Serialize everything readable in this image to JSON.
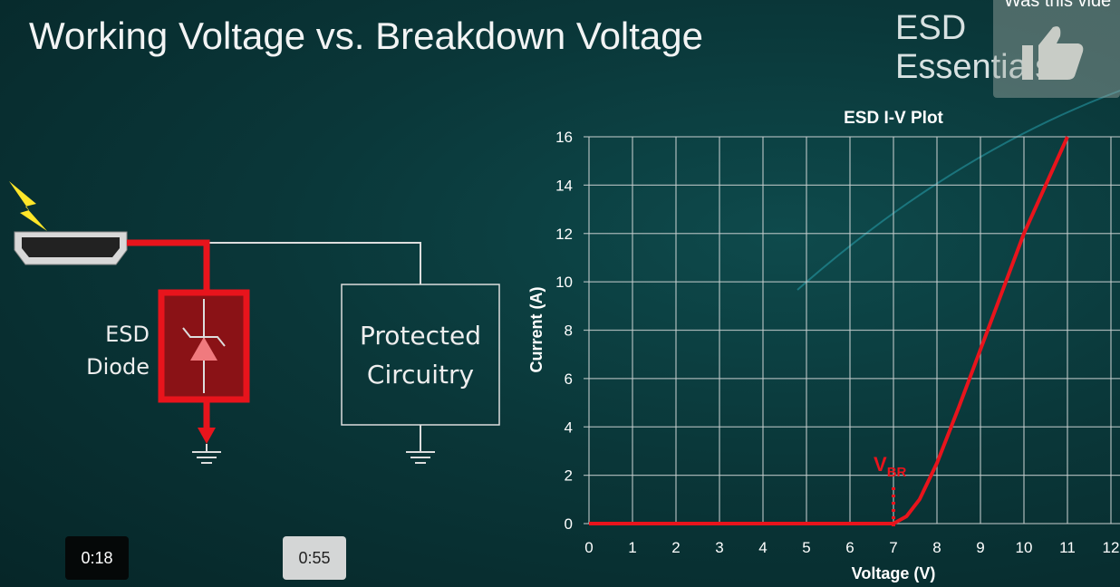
{
  "slide": {
    "title": "Working Voltage vs. Breakdown Voltage",
    "brand": "ESD Essentials",
    "diagram": {
      "diode_label_line1": "ESD",
      "diode_label_line2": "Diode",
      "box_line1": "Protected",
      "box_line2": "Circuitry"
    }
  },
  "player": {
    "feedback_prompt": "Was this vide",
    "feedback_icon": "thumbs-up-icon",
    "current_time": "0:18",
    "hover_time": "0:55"
  },
  "colors": {
    "accent_red": "#e8141c",
    "background": "#0a3739"
  },
  "chart_data": {
    "type": "line",
    "title": "ESD I-V Plot",
    "xlabel": "Voltage (V)",
    "ylabel": "Current (A)",
    "xlim": [
      0,
      12
    ],
    "ylim": [
      0,
      16
    ],
    "xticks": [
      "0",
      "1",
      "2",
      "3",
      "4",
      "5",
      "6",
      "7",
      "8",
      "9",
      "10",
      "11",
      "12"
    ],
    "yticks": [
      "0",
      "2",
      "4",
      "6",
      "8",
      "10",
      "12",
      "14",
      "16"
    ],
    "grid": true,
    "series": [
      {
        "color": "#e8141c",
        "x": [
          0,
          7,
          7.3,
          7.6,
          8,
          8.5,
          9,
          9.5,
          10,
          10.5,
          11
        ],
        "y": [
          0,
          0,
          0.3,
          1.0,
          2.5,
          4.8,
          7.2,
          9.6,
          12,
          14,
          16
        ]
      }
    ],
    "annotation": {
      "text": "V",
      "subscript": "BR",
      "x": 7
    }
  }
}
